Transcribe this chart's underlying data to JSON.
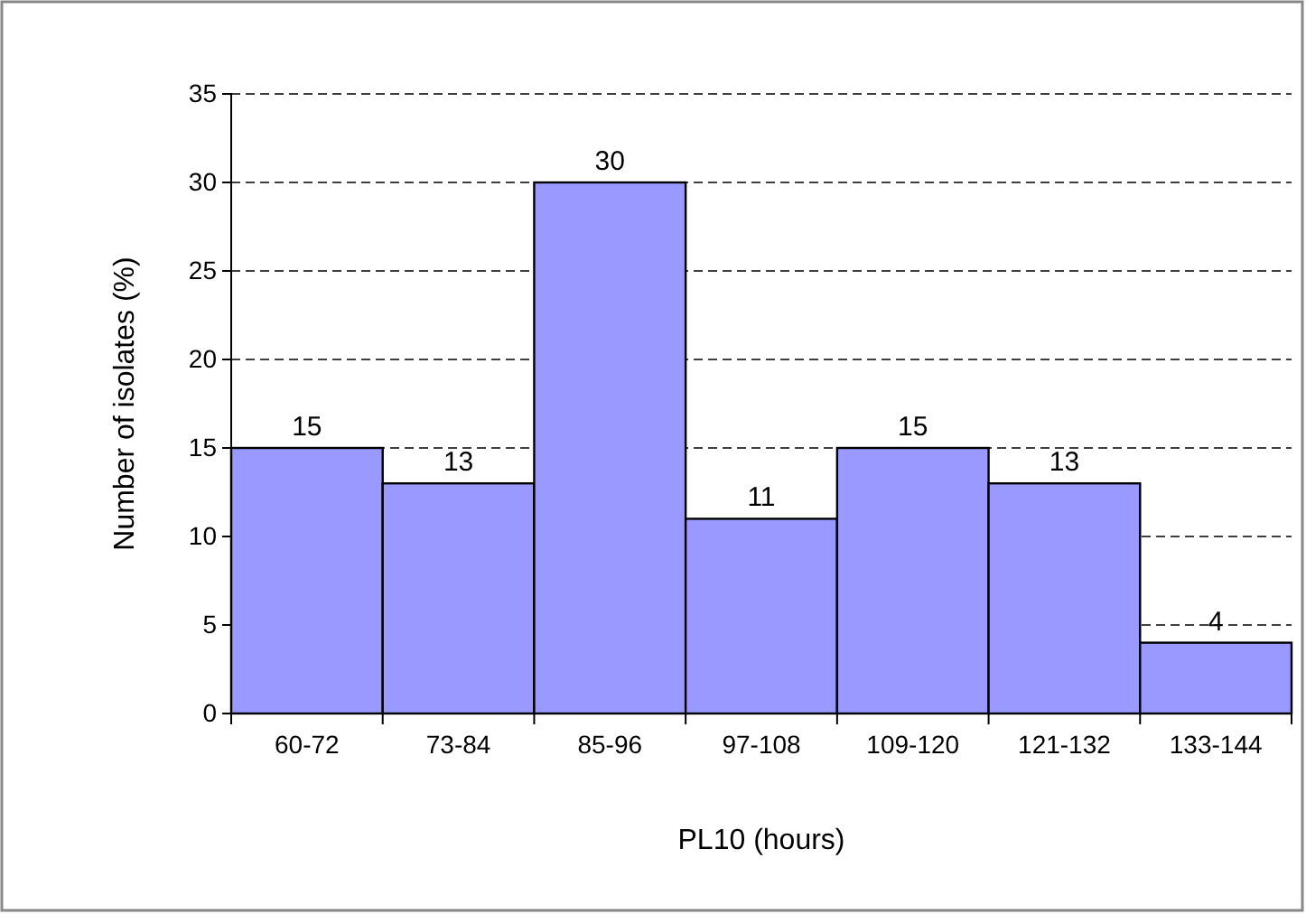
{
  "chart_data": {
    "type": "bar",
    "xlabel": "PL10 (hours)",
    "ylabel": "Number of isolates (%)",
    "categories": [
      "60-72",
      "73-84",
      "85-96",
      "97-108",
      "109-120",
      "121-132",
      "133-144"
    ],
    "values": [
      15,
      13,
      30,
      11,
      15,
      13,
      4
    ],
    "color": "#9999ff",
    "ylim": [
      0,
      35
    ],
    "yticks": [
      0,
      5,
      10,
      15,
      20,
      25,
      30,
      35
    ],
    "grid": "y",
    "data_labels": true
  }
}
